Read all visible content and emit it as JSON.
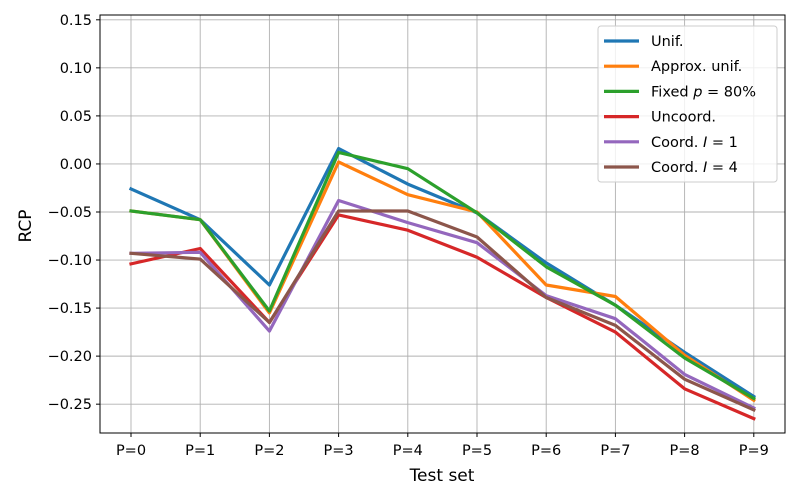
{
  "chart_data": {
    "type": "line",
    "xlabel": "Test set",
    "ylabel": "RCP",
    "categories": [
      "P=0",
      "P=1",
      "P=2",
      "P=3",
      "P=4",
      "P=5",
      "P=6",
      "P=7",
      "P=8",
      "P=9"
    ],
    "ylim": [
      -0.28,
      0.155
    ],
    "yticks": [
      0.15,
      0.1,
      0.05,
      0.0,
      -0.05,
      -0.1,
      -0.15,
      -0.2,
      -0.25
    ],
    "ytick_labels": [
      "0.15",
      "0.10",
      "0.05",
      "0.00",
      "−0.05",
      "−0.10",
      "−0.15",
      "−0.20",
      "−0.25"
    ],
    "grid": true,
    "legend_position": "top-right",
    "series": [
      {
        "name_parts": [
          "Unif."
        ],
        "color": "#1f77b4",
        "values": [
          -0.026,
          -0.058,
          -0.126,
          0.016,
          -0.021,
          -0.051,
          -0.103,
          -0.147,
          -0.196,
          -0.242
        ]
      },
      {
        "name_parts": [
          "Approx. unif."
        ],
        "color": "#ff7f0e",
        "values": [
          -0.049,
          -0.058,
          -0.155,
          0.002,
          -0.032,
          -0.05,
          -0.126,
          -0.138,
          -0.199,
          -0.246
        ]
      },
      {
        "name_parts": [
          "Fixed ",
          "p",
          " = 80%"
        ],
        "color": "#2ca02c",
        "values": [
          -0.049,
          -0.058,
          -0.153,
          0.012,
          -0.005,
          -0.051,
          -0.107,
          -0.147,
          -0.202,
          -0.244
        ]
      },
      {
        "name_parts": [
          "Uncoord."
        ],
        "color": "#d62728",
        "values": [
          -0.104,
          -0.088,
          -0.165,
          -0.053,
          -0.069,
          -0.097,
          -0.139,
          -0.175,
          -0.234,
          -0.265
        ]
      },
      {
        "name_parts": [
          "Coord. ",
          "I",
          " = 1"
        ],
        "color": "#9467bd",
        "values": [
          -0.093,
          -0.092,
          -0.174,
          -0.038,
          -0.061,
          -0.082,
          -0.137,
          -0.161,
          -0.219,
          -0.254
        ]
      },
      {
        "name_parts": [
          "Coord. ",
          "I",
          " = 4"
        ],
        "color": "#8c564b",
        "values": [
          -0.093,
          -0.099,
          -0.165,
          -0.049,
          -0.049,
          -0.076,
          -0.139,
          -0.168,
          -0.224,
          -0.256
        ]
      }
    ]
  }
}
